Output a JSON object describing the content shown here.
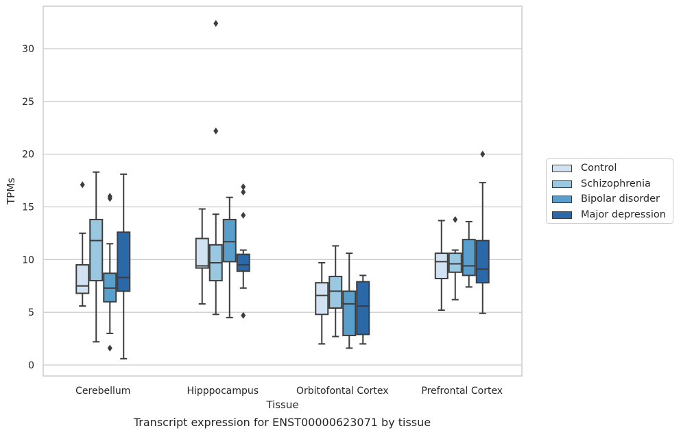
{
  "chart_data": {
    "type": "box",
    "title": "Transcript expression for ENST00000623071 by tissue",
    "xlabel": "Tissue",
    "ylabel": "TPMs",
    "ylim": [
      -1,
      33
    ],
    "yticks": [
      0,
      5,
      10,
      15,
      20,
      25,
      30
    ],
    "categories": [
      "Cerebellum",
      "Hipppocampus",
      "Orbitofontal Cortex",
      "Prefrontal Cortex"
    ],
    "grid": "horizontal",
    "legend_position": "right",
    "series": [
      {
        "name": "Control",
        "color": "#d1e2f2",
        "boxes": [
          {
            "whisker_low": 5.6,
            "q1": 6.8,
            "median": 7.5,
            "q3": 9.5,
            "whisker_high": 12.5,
            "outliers": [
              17.1
            ]
          },
          {
            "whisker_low": 5.8,
            "q1": 9.2,
            "median": 9.4,
            "q3": 12.0,
            "whisker_high": 14.8,
            "outliers": []
          },
          {
            "whisker_low": 2.0,
            "q1": 4.8,
            "median": 6.6,
            "q3": 7.8,
            "whisker_high": 9.7,
            "outliers": []
          },
          {
            "whisker_low": 5.2,
            "q1": 8.2,
            "median": 9.8,
            "q3": 10.6,
            "whisker_high": 13.7,
            "outliers": []
          }
        ]
      },
      {
        "name": "Schizophrenia",
        "color": "#9ac8e0",
        "boxes": [
          {
            "whisker_low": 2.2,
            "q1": 8.0,
            "median": 11.8,
            "q3": 13.8,
            "whisker_high": 18.3,
            "outliers": []
          },
          {
            "whisker_low": 4.8,
            "q1": 8.0,
            "median": 9.7,
            "q3": 11.4,
            "whisker_high": 14.3,
            "outliers": [
              22.2,
              32.4
            ]
          },
          {
            "whisker_low": 2.7,
            "q1": 5.4,
            "median": 7.0,
            "q3": 8.4,
            "whisker_high": 11.3,
            "outliers": []
          },
          {
            "whisker_low": 6.2,
            "q1": 8.8,
            "median": 9.6,
            "q3": 10.6,
            "whisker_high": 10.9,
            "outliers": [
              13.8
            ]
          }
        ]
      },
      {
        "name": "Bipolar disorder",
        "color": "#5a9ecb",
        "boxes": [
          {
            "whisker_low": 3.0,
            "q1": 6.0,
            "median": 7.3,
            "q3": 8.7,
            "whisker_high": 11.5,
            "outliers": [
              1.6,
              15.8,
              16.0
            ]
          },
          {
            "whisker_low": 4.5,
            "q1": 9.8,
            "median": 11.7,
            "q3": 13.8,
            "whisker_high": 15.9,
            "outliers": []
          },
          {
            "whisker_low": 1.6,
            "q1": 2.8,
            "median": 5.8,
            "q3": 7.0,
            "whisker_high": 10.6,
            "outliers": []
          },
          {
            "whisker_low": 7.4,
            "q1": 8.5,
            "median": 9.4,
            "q3": 11.9,
            "whisker_high": 13.6,
            "outliers": []
          }
        ]
      },
      {
        "name": "Major depression",
        "color": "#2a68a8",
        "boxes": [
          {
            "whisker_low": 0.6,
            "q1": 7.0,
            "median": 8.3,
            "q3": 12.6,
            "whisker_high": 18.1,
            "outliers": []
          },
          {
            "whisker_low": 7.3,
            "q1": 8.9,
            "median": 9.5,
            "q3": 10.5,
            "whisker_high": 10.9,
            "outliers": [
              4.7,
              14.2,
              16.4,
              16.9
            ]
          },
          {
            "whisker_low": 2.0,
            "q1": 2.9,
            "median": 5.6,
            "q3": 7.9,
            "whisker_high": 8.5,
            "outliers": []
          },
          {
            "whisker_low": 4.9,
            "q1": 7.8,
            "median": 9.1,
            "q3": 11.8,
            "whisker_high": 17.3,
            "outliers": [
              20.0
            ]
          }
        ]
      }
    ]
  }
}
